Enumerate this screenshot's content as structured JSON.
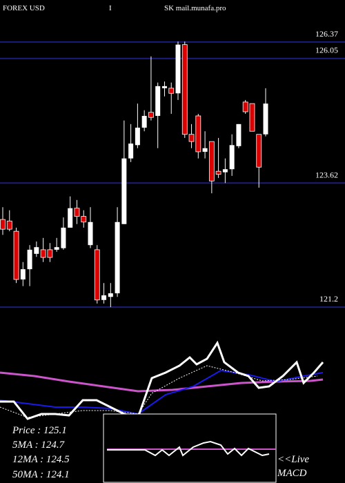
{
  "chart_data": [
    {
      "type": "candlestick",
      "header": [
        "FOREX  USD",
        "I",
        "SK mail.munafa.pro"
      ],
      "up_color": "#ffffff",
      "down_color": "#dd0000",
      "grid_color": "#1c1c7a",
      "ylim": [
        121.0,
        127.19
      ],
      "yticks": [
        121.2,
        123.62,
        126.05,
        126.37
      ],
      "open": [
        122.91,
        122.88,
        122.68,
        121.74,
        121.94,
        122.24,
        122.32,
        122.32,
        122.32,
        122.35,
        122.75,
        123.13,
        122.97,
        122.41,
        122.32,
        121.34,
        121.4,
        121.47,
        122.82,
        124.1,
        124.36,
        124.7,
        125.0,
        124.93,
        125.47,
        125.47,
        125.37,
        126.32,
        124.57,
        124.93,
        124.23,
        124.43,
        123.85,
        123.83,
        123.89,
        124.34,
        125.2,
        125.17,
        124.57,
        124.57
      ],
      "high": [
        123.15,
        123.09,
        122.75,
        122.08,
        122.41,
        122.48,
        122.55,
        122.45,
        122.55,
        122.95,
        123.36,
        123.29,
        123.09,
        123.15,
        122.41,
        121.67,
        121.67,
        123.15,
        124.84,
        124.77,
        125.17,
        125.04,
        126.09,
        125.58,
        125.6,
        125.58,
        126.38,
        126.38,
        124.77,
        124.97,
        124.63,
        124.43,
        124.5,
        124.1,
        124.57,
        124.77,
        125.24,
        125.17,
        124.57,
        125.47
      ],
      "low": [
        122.61,
        122.68,
        121.67,
        121.61,
        121.61,
        122.18,
        122.08,
        122.08,
        122.28,
        122.32,
        122.75,
        122.82,
        122.75,
        122.35,
        121.27,
        121.27,
        121.2,
        121.4,
        122.82,
        124.03,
        124.3,
        124.63,
        124.84,
        124.3,
        125.31,
        124.97,
        125.24,
        124.5,
        124.3,
        124.1,
        124.1,
        123.42,
        123.72,
        123.62,
        123.76,
        124.3,
        124.97,
        124.63,
        123.53,
        124.53
      ],
      "close": [
        122.72,
        122.72,
        121.74,
        121.94,
        122.32,
        122.37,
        122.17,
        122.17,
        122.37,
        122.75,
        123.13,
        122.97,
        122.86,
        122.86,
        121.34,
        121.43,
        121.47,
        122.86,
        124.1,
        124.39,
        124.7,
        124.93,
        124.9,
        125.51,
        125.51,
        125.37,
        126.32,
        124.57,
        124.43,
        124.23,
        124.3,
        123.66,
        123.79,
        123.89,
        124.36,
        124.77,
        125.01,
        124.63,
        123.93,
        125.17
      ]
    },
    {
      "type": "line",
      "xlim": [
        0,
        500
      ],
      "ylim": [
        0,
        130
      ],
      "info": [
        "Price  : 125.1",
        "5MA  : 124.7",
        "12MA : 124.5",
        "50MA : 124.1"
      ],
      "series": [
        {
          "color": "#cc55cc",
          "width": 3,
          "x": [
            0,
            50,
            100,
            150,
            200,
            250,
            300,
            350,
            400,
            450,
            468
          ],
          "values": [
            70,
            65,
            57,
            50,
            43,
            45,
            50,
            55,
            57,
            58,
            60
          ]
        },
        {
          "color": "#1a1aee",
          "width": 2,
          "x": [
            0,
            40,
            80,
            120,
            160,
            200,
            240,
            280,
            320,
            360,
            400,
            440,
            468
          ],
          "values": [
            30,
            25,
            20,
            20,
            18,
            10,
            38,
            50,
            73,
            67,
            57,
            65,
            70
          ]
        },
        {
          "color": "#ffffff",
          "width": 1,
          "dash": true,
          "x": [
            0,
            40,
            80,
            120,
            160,
            200,
            220,
            260,
            300,
            340,
            380,
            420,
            460
          ],
          "values": [
            20,
            5,
            10,
            15,
            15,
            10,
            40,
            62,
            80,
            70,
            58,
            60,
            65
          ]
        },
        {
          "color": "#ffffff",
          "width": 3,
          "x": [
            0,
            20,
            40,
            60,
            80,
            100,
            120,
            140,
            160,
            180,
            200,
            220,
            240,
            260,
            275,
            285,
            300,
            315,
            325,
            345,
            360,
            375,
            390,
            410,
            430,
            440,
            455,
            468
          ],
          "values": [
            28,
            28,
            3,
            10,
            10,
            8,
            30,
            30,
            20,
            10,
            5,
            62,
            70,
            80,
            92,
            82,
            90,
            113,
            85,
            70,
            65,
            48,
            50,
            65,
            85,
            55,
            70,
            85
          ]
        }
      ]
    },
    {
      "type": "line",
      "title": "<<Live MACD",
      "xlim": [
        150,
        400
      ],
      "ylim": [
        0,
        100
      ],
      "series": [
        {
          "color": "#cc55cc",
          "width": 2,
          "x": [
            155,
            400
          ],
          "values": [
            49,
            49
          ]
        },
        {
          "color": "#ffffff",
          "width": 2,
          "x": [
            155,
            180,
            210,
            225,
            235,
            245,
            260,
            265,
            280,
            295,
            305,
            320,
            330,
            340,
            350,
            360,
            370,
            380,
            390
          ],
          "values": [
            48,
            48,
            48,
            40,
            48,
            40,
            52,
            40,
            52,
            58,
            60,
            55,
            42,
            50,
            40,
            50,
            45,
            40,
            42
          ]
        }
      ]
    }
  ]
}
